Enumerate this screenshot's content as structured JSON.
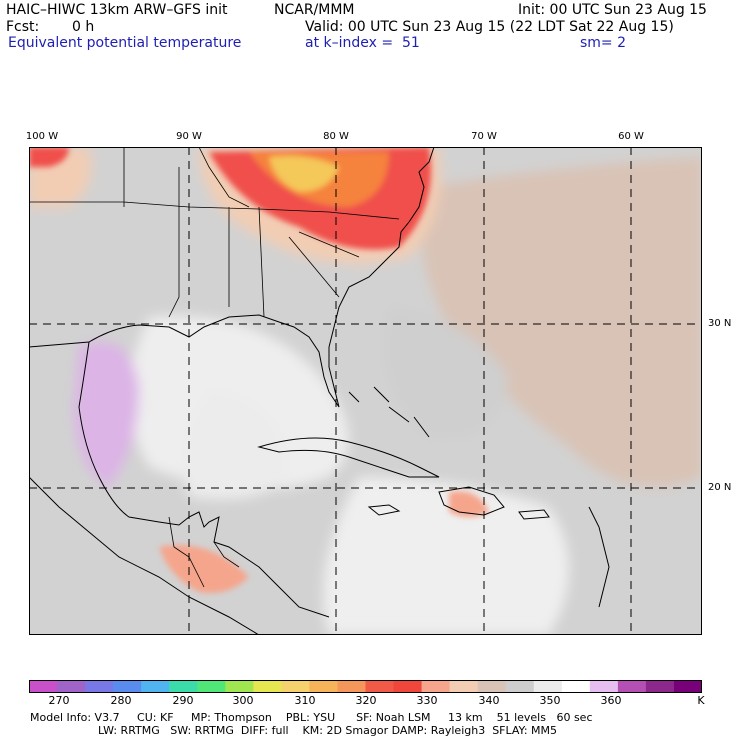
{
  "header": {
    "model": "HAIC–HIWC 13km ARW–GFS init",
    "org": "NCAR/MMM",
    "init": "Init: 00 UTC Sun 23 Aug 15",
    "fcst_label": "Fcst:",
    "fcst_value": "0 h",
    "valid": "Valid: 00 UTC Sun 23 Aug 15 (22 LDT Sat 22 Aug 15)",
    "field": "Equivalent potential temperature",
    "level": "at k–index =  51",
    "smooth": "sm= 2"
  },
  "map": {
    "lon_labels": [
      "100 W",
      "90 W",
      "80 W",
      "70 W",
      "60 W"
    ],
    "lat_labels": [
      "30 N",
      "20 N"
    ],
    "field_colors": {
      "low_purple": "#dcb4e6",
      "white": "#f0f0f0",
      "light_gray": "#d2d2d2",
      "tan": "#d9c3b6",
      "peach": "#f2cdb4",
      "salmon": "#f5a58c",
      "red_orange": "#f0504b",
      "orange": "#f5823c",
      "yellow": "#f5c85a"
    }
  },
  "colorbar": {
    "colors": [
      "#c850c8",
      "#a064c8",
      "#7878e6",
      "#5a8cf0",
      "#50b4f0",
      "#3cdcaa",
      "#50e678",
      "#a0e650",
      "#e6e650",
      "#f5d26e",
      "#f5b45a",
      "#f5965a",
      "#f05a46",
      "#f0463c",
      "#f5a58c",
      "#f2cdb4",
      "#d9c3b6",
      "#cdcdcd",
      "#ebebeb",
      "#ffffff",
      "#e6bef0",
      "#b450b4",
      "#8c288c",
      "#780078"
    ],
    "tick_labels": [
      "270",
      "280",
      "290",
      "300",
      "310",
      "320",
      "330",
      "340",
      "350",
      "360"
    ],
    "units": "K"
  },
  "footer": {
    "line1": "Model Info: V3.7     CU: KF     MP: Thompson    PBL: YSU      SF: Noah LSM     13 km    51 levels   60 sec",
    "line2": "LW: RRTMG   SW: RRTMG  DIFF: full    KM: 2D Smagor DAMP: Rayleigh3  SFLAY: MM5"
  }
}
